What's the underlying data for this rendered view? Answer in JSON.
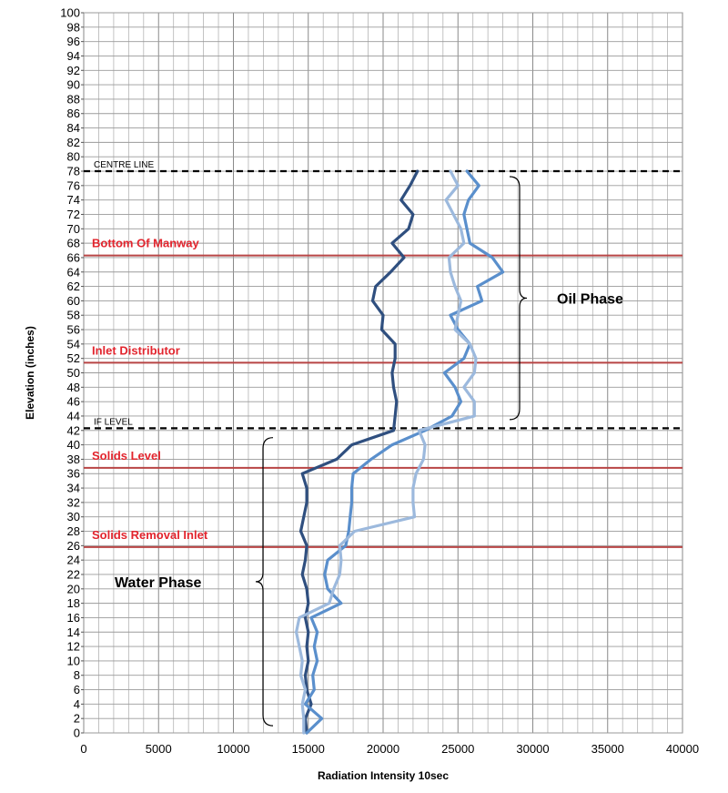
{
  "chart_data": {
    "type": "line",
    "title": "",
    "xlabel": "Radiation Intensity 10sec",
    "ylabel": "Elevation (inches)",
    "xlim": [
      0,
      40000
    ],
    "ylim": [
      0,
      100
    ],
    "xtick_step": 5000,
    "ytick_step": 2,
    "grid": true,
    "legend": "none",
    "series": [
      {
        "color": "#2f4f7f",
        "points": [
          [
            14900,
            0
          ],
          [
            14800,
            2
          ],
          [
            15200,
            4
          ],
          [
            14900,
            6
          ],
          [
            14800,
            8
          ],
          [
            15000,
            10
          ],
          [
            14900,
            12
          ],
          [
            15000,
            14
          ],
          [
            14800,
            16
          ],
          [
            15000,
            18
          ],
          [
            14900,
            20
          ],
          [
            14600,
            22
          ],
          [
            14800,
            24
          ],
          [
            14900,
            26
          ],
          [
            14500,
            28
          ],
          [
            14700,
            30
          ],
          [
            14900,
            32
          ],
          [
            14900,
            34
          ],
          [
            14600,
            36
          ],
          [
            16900,
            38
          ],
          [
            17900,
            40
          ],
          [
            20700,
            42
          ],
          [
            20800,
            44
          ],
          [
            20900,
            46
          ],
          [
            20700,
            48
          ],
          [
            20600,
            50
          ],
          [
            20800,
            52
          ],
          [
            20800,
            54
          ],
          [
            19900,
            56
          ],
          [
            20000,
            58
          ],
          [
            19300,
            60
          ],
          [
            19500,
            62
          ],
          [
            20500,
            64
          ],
          [
            21400,
            66
          ],
          [
            20600,
            68
          ],
          [
            21700,
            70
          ],
          [
            22000,
            72
          ],
          [
            21200,
            74
          ],
          [
            21800,
            76
          ],
          [
            22300,
            78
          ]
        ]
      },
      {
        "color": "#5a8fcc",
        "points": [
          [
            14900,
            0
          ],
          [
            15900,
            2
          ],
          [
            14800,
            4
          ],
          [
            15400,
            6
          ],
          [
            15300,
            8
          ],
          [
            15600,
            10
          ],
          [
            15400,
            12
          ],
          [
            15600,
            14
          ],
          [
            15200,
            16
          ],
          [
            17200,
            18
          ],
          [
            16300,
            20
          ],
          [
            16100,
            22
          ],
          [
            16300,
            24
          ],
          [
            17500,
            26
          ],
          [
            17700,
            28
          ],
          [
            17800,
            30
          ],
          [
            17900,
            32
          ],
          [
            17900,
            34
          ],
          [
            18000,
            36
          ],
          [
            19200,
            38
          ],
          [
            20600,
            40
          ],
          [
            22800,
            42
          ],
          [
            24600,
            44
          ],
          [
            25200,
            46
          ],
          [
            24800,
            48
          ],
          [
            24100,
            50
          ],
          [
            25400,
            52
          ],
          [
            25800,
            54
          ],
          [
            25000,
            56
          ],
          [
            24500,
            58
          ],
          [
            26600,
            60
          ],
          [
            26300,
            62
          ],
          [
            28000,
            64
          ],
          [
            27300,
            66
          ],
          [
            25800,
            68
          ],
          [
            25600,
            70
          ],
          [
            25400,
            72
          ],
          [
            25700,
            74
          ],
          [
            26400,
            76
          ],
          [
            25600,
            78
          ]
        ]
      },
      {
        "color": "#9cb9dd",
        "points": [
          [
            14700,
            0
          ],
          [
            14700,
            2
          ],
          [
            14600,
            4
          ],
          [
            14800,
            6
          ],
          [
            14500,
            8
          ],
          [
            14600,
            10
          ],
          [
            14400,
            12
          ],
          [
            14200,
            14
          ],
          [
            14400,
            16
          ],
          [
            16400,
            18
          ],
          [
            16700,
            20
          ],
          [
            17100,
            22
          ],
          [
            17200,
            24
          ],
          [
            17100,
            26
          ],
          [
            18100,
            28
          ],
          [
            22100,
            30
          ],
          [
            22000,
            32
          ],
          [
            22000,
            34
          ],
          [
            22200,
            36
          ],
          [
            22700,
            38
          ],
          [
            22800,
            40
          ],
          [
            22400,
            42
          ],
          [
            26100,
            44
          ],
          [
            26100,
            46
          ],
          [
            25400,
            48
          ],
          [
            26100,
            50
          ],
          [
            26200,
            52
          ],
          [
            25800,
            54
          ],
          [
            24800,
            56
          ],
          [
            25000,
            58
          ],
          [
            25200,
            60
          ],
          [
            24800,
            62
          ],
          [
            24500,
            64
          ],
          [
            24400,
            66
          ],
          [
            25400,
            68
          ],
          [
            25200,
            70
          ],
          [
            24700,
            72
          ],
          [
            24200,
            74
          ],
          [
            25000,
            76
          ],
          [
            24500,
            78
          ]
        ]
      }
    ],
    "reference_lines": [
      {
        "y": 78,
        "style": "dashed",
        "color": "#000000",
        "label": "CENTRE  LINE"
      },
      {
        "y": 42.3,
        "style": "dashed",
        "color": "#000000",
        "label": "IF LEVEL"
      },
      {
        "y": 66.3,
        "style": "solid",
        "color": "#b84545",
        "label": "Bottom Of Manway"
      },
      {
        "y": 51.4,
        "style": "solid",
        "color": "#b84545",
        "label": "Inlet Distributor"
      },
      {
        "y": 36.8,
        "style": "solid",
        "color": "#b84545",
        "label": "Solids Level"
      },
      {
        "y": 25.8,
        "style": "solid",
        "color": "#b84545",
        "label": "Solids Removal Inlet"
      }
    ],
    "annotations": [
      {
        "label": "Oil Phase",
        "bracket_y": [
          43,
          78
        ]
      },
      {
        "label": "Water Phase",
        "bracket_y": [
          1,
          41
        ]
      }
    ]
  }
}
